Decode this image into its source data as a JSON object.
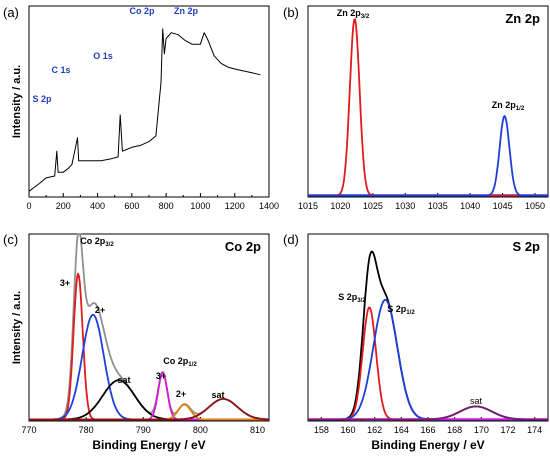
{
  "colors": {
    "blue_label": "#1f3fbf",
    "black": "#000000",
    "red": "#e31a1c",
    "blue": "#1f3fd6",
    "gray": "#909090",
    "magenta": "#d41ad4",
    "orange": "#d9860a",
    "darkred": "#8b1010",
    "purple": "#7a1a7a"
  },
  "chart_data": [
    {
      "panel_label": "(a)",
      "type": "line",
      "title": "",
      "xlabel": "",
      "ylabel": "Intensity / a.u.",
      "xlim": [
        0,
        1400
      ],
      "xticks": [
        "0",
        "200",
        "400",
        "600",
        "800",
        "1000",
        "1200",
        "1400"
      ],
      "annotations": [
        {
          "text": "S 2p",
          "x": 165
        },
        {
          "text": "C 1s",
          "x": 285
        },
        {
          "text": "O 1s",
          "x": 532
        },
        {
          "text": "Co 2p",
          "x": 780
        },
        {
          "text": "Zn 2p",
          "x": 1022
        }
      ],
      "series": [
        {
          "color": "#000000",
          "x": [
            0,
            30,
            60,
            100,
            150,
            162,
            170,
            200,
            230,
            250,
            283,
            290,
            320,
            380,
            420,
            480,
            520,
            532,
            545,
            600,
            650,
            700,
            740,
            770,
            780,
            790,
            800,
            830,
            870,
            910,
            950,
            1000,
            1022,
            1045,
            1080,
            1120,
            1160,
            1200,
            1250,
            1300,
            1350
          ],
          "y": [
            3,
            5,
            7,
            10,
            11,
            24,
            13,
            13,
            15,
            17,
            31,
            19,
            19,
            19,
            19,
            20,
            21,
            43,
            24,
            26,
            27,
            29,
            32,
            60,
            88,
            75,
            83,
            86,
            85,
            82,
            80,
            80,
            86,
            82,
            74,
            70,
            68,
            67,
            66,
            65,
            64
          ]
        }
      ]
    },
    {
      "panel_label": "(b)",
      "type": "line",
      "title": "Zn 2p",
      "xlabel": "",
      "ylabel": "",
      "xlim": [
        1015,
        1052
      ],
      "xticks": [
        "1015",
        "1020",
        "1025",
        "1030",
        "1035",
        "1040",
        "1045",
        "1050"
      ],
      "annotations": [
        {
          "text": "Zn 2p3/2",
          "x": 1022.2
        },
        {
          "text": "Zn 2p1/2",
          "x": 1045.3
        }
      ],
      "series": [
        {
          "color": "#1f3fd6",
          "type": "baseline",
          "x": [
            1015,
            1052
          ],
          "y": [
            1,
            1
          ]
        },
        {
          "color": "#e31a1c",
          "peaks": [
            {
              "center": 1022.2,
              "height": 100,
              "sigma": 0.75
            }
          ]
        },
        {
          "color": "#1f3fd6",
          "peaks": [
            {
              "center": 1045.3,
              "height": 45,
              "sigma": 0.75
            }
          ]
        }
      ]
    },
    {
      "panel_label": "(c)",
      "type": "line",
      "title": "Co 2p",
      "xlabel": "Binding Energy / eV",
      "ylabel": "Intensity / a.u.",
      "xlim": [
        770,
        812
      ],
      "xticks": [
        "770",
        "780",
        "790",
        "800",
        "810"
      ],
      "annotations": [
        {
          "text": "Co 2p3/2",
          "x": 781
        },
        {
          "text": "3+",
          "x": 776.5
        },
        {
          "text": "2+",
          "x": 782.5
        },
        {
          "text": "sat",
          "x": 788
        },
        {
          "text": "Co 2p1/2",
          "x": 796
        },
        {
          "text": "3+",
          "x": 793.4
        },
        {
          "text": "2+",
          "x": 797.5
        },
        {
          "text": "sat",
          "x": 804
        }
      ],
      "series": [
        {
          "color": "#909090",
          "role": "envelope"
        },
        {
          "color": "#e31a1c",
          "peaks": [
            {
              "center": 778.6,
              "height": 78,
              "sigma": 0.8
            }
          ]
        },
        {
          "color": "#1f3fd6",
          "peaks": [
            {
              "center": 781.2,
              "height": 56,
              "sigma": 1.9
            }
          ]
        },
        {
          "color": "#000000",
          "peaks": [
            {
              "center": 785.7,
              "height": 21,
              "sigma": 2.8
            }
          ]
        },
        {
          "color": "#d41ad4",
          "peaks": [
            {
              "center": 793.4,
              "height": 25,
              "sigma": 0.8
            }
          ]
        },
        {
          "color": "#d9860a",
          "peaks": [
            {
              "center": 797.2,
              "height": 8,
              "sigma": 1.1
            }
          ]
        },
        {
          "color": "#8b1010",
          "peaks": [
            {
              "center": 804,
              "height": 11,
              "sigma": 2.5
            }
          ]
        }
      ]
    },
    {
      "panel_label": "(d)",
      "type": "line",
      "title": "S 2p",
      "xlabel": "Binding Energy / eV",
      "ylabel": "",
      "xlim": [
        157,
        175
      ],
      "xticks": [
        "158",
        "160",
        "162",
        "164",
        "166",
        "168",
        "170",
        "172",
        "174"
      ],
      "annotations": [
        {
          "text": "S 2p3/2",
          "x": 161.2
        },
        {
          "text": "S 2p1/2",
          "x": 163.6
        },
        {
          "text": "sat",
          "x": 169.6
        }
      ],
      "series": [
        {
          "color": "#000000",
          "role": "envelope"
        },
        {
          "color": "#e31a1c",
          "peaks": [
            {
              "center": 161.6,
              "height": 60,
              "sigma": 0.5
            }
          ]
        },
        {
          "color": "#1f3fd6",
          "peaks": [
            {
              "center": 162.8,
              "height": 64,
              "sigma": 0.9
            }
          ]
        },
        {
          "color": "#d41ad4",
          "type": "baseline",
          "x": [
            157,
            175
          ],
          "y": [
            1,
            1
          ]
        },
        {
          "color": "#7a1a7a",
          "peaks": [
            {
              "center": 169.6,
              "height": 7,
              "sigma": 1.2
            }
          ]
        }
      ]
    }
  ]
}
